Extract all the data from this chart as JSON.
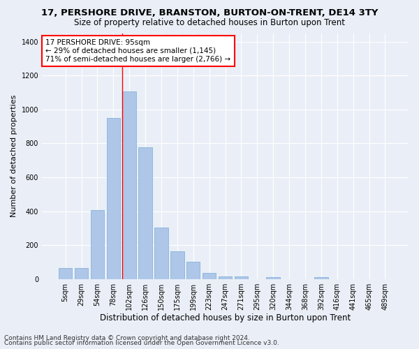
{
  "title": "17, PERSHORE DRIVE, BRANSTON, BURTON-ON-TRENT, DE14 3TY",
  "subtitle": "Size of property relative to detached houses in Burton upon Trent",
  "xlabel": "Distribution of detached houses by size in Burton upon Trent",
  "ylabel": "Number of detached properties",
  "footnote1": "Contains HM Land Registry data © Crown copyright and database right 2024.",
  "footnote2": "Contains public sector information licensed under the Open Government Licence v3.0.",
  "bar_labels": [
    "5sqm",
    "29sqm",
    "54sqm",
    "78sqm",
    "102sqm",
    "126sqm",
    "150sqm",
    "175sqm",
    "199sqm",
    "223sqm",
    "247sqm",
    "271sqm",
    "295sqm",
    "320sqm",
    "344sqm",
    "368sqm",
    "392sqm",
    "416sqm",
    "441sqm",
    "465sqm",
    "489sqm"
  ],
  "bar_values": [
    65,
    65,
    405,
    950,
    1105,
    775,
    305,
    165,
    100,
    35,
    15,
    15,
    0,
    10,
    0,
    0,
    10,
    0,
    0,
    0,
    0
  ],
  "bar_color": "#aec6e8",
  "bar_edge_color": "#7aadd4",
  "red_line_x": 4,
  "annotation_text": "17 PERSHORE DRIVE: 95sqm\n← 29% of detached houses are smaller (1,145)\n71% of semi-detached houses are larger (2,766) →",
  "annotation_box_color": "white",
  "annotation_box_edge_color": "red",
  "ylim": [
    0,
    1450
  ],
  "yticks": [
    0,
    200,
    400,
    600,
    800,
    1000,
    1200,
    1400
  ],
  "bg_color": "#eaeff7",
  "plot_bg_color": "#eaeff7",
  "grid_color": "white",
  "title_fontsize": 9.5,
  "subtitle_fontsize": 8.5,
  "xlabel_fontsize": 8.5,
  "ylabel_fontsize": 8,
  "tick_fontsize": 7,
  "annotation_fontsize": 7.5,
  "footnote_fontsize": 6.5
}
